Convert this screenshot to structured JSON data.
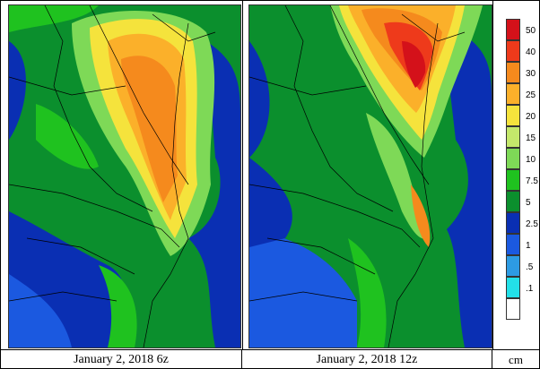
{
  "panels": [
    {
      "caption": "January 2, 2018 6z"
    },
    {
      "caption": "January 2, 2018 12z"
    }
  ],
  "legend": {
    "unit": "cm",
    "items": [
      {
        "label": "50",
        "color": "#d4111a"
      },
      {
        "label": "40",
        "color": "#ee3a1b"
      },
      {
        "label": "30",
        "color": "#f58a1d"
      },
      {
        "label": "25",
        "color": "#fbb02a"
      },
      {
        "label": "20",
        "color": "#f5e33c"
      },
      {
        "label": "15",
        "color": "#c4e86b"
      },
      {
        "label": "10",
        "color": "#7ed957"
      },
      {
        "label": "7.5",
        "color": "#1fc21f"
      },
      {
        "label": "5",
        "color": "#0b8f2d"
      },
      {
        "label": "2.5",
        "color": "#0a2fb3"
      },
      {
        "label": "1",
        "color": "#1b59e0"
      },
      {
        "label": ".5",
        "color": "#2d9be3"
      },
      {
        "label": ".1",
        "color": "#23e0e8"
      },
      {
        "label": "",
        "color": "#ffffff"
      }
    ]
  }
}
